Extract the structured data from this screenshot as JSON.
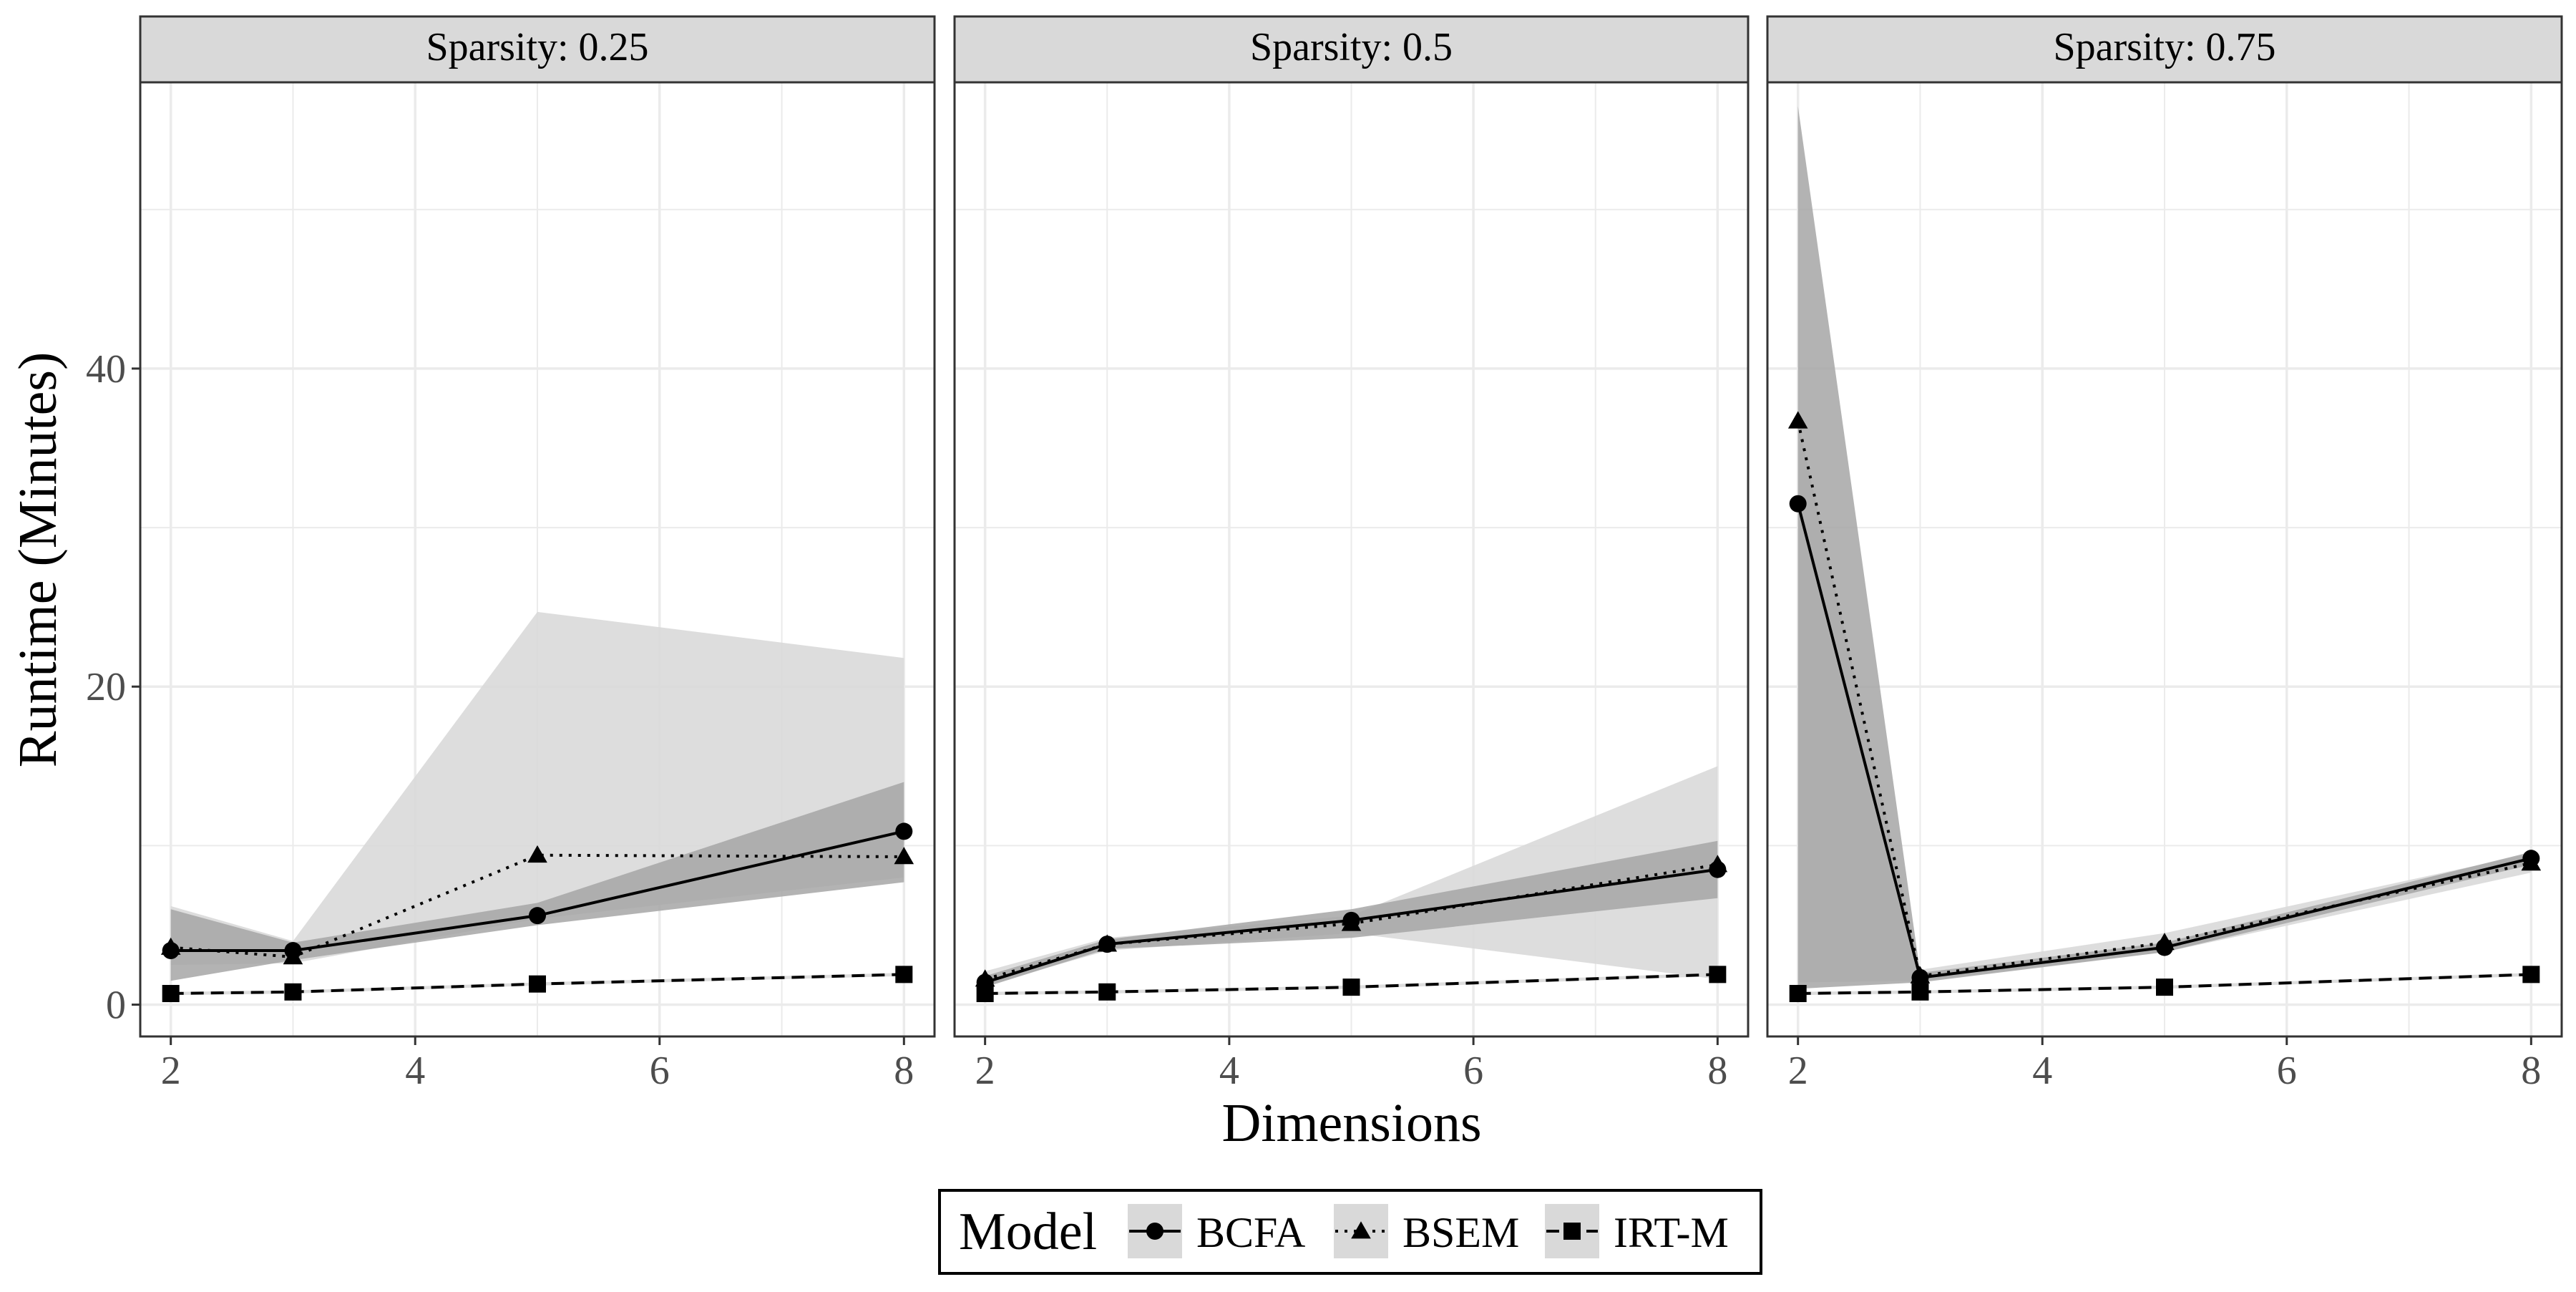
{
  "chart_data": {
    "type": "line",
    "ylabel": "Runtime (Minutes)",
    "xlabel": "Dimensions",
    "xlim": [
      1.75,
      8.25
    ],
    "ylim": [
      -2,
      58
    ],
    "x_ticks": [
      2,
      4,
      6,
      8
    ],
    "y_ticks": [
      0,
      20,
      40
    ],
    "grid": true,
    "legend": {
      "position": "bottom",
      "title": "Model",
      "entries": [
        {
          "name": "BCFA",
          "marker": "circle",
          "linestyle": "solid"
        },
        {
          "name": "BSEM",
          "marker": "triangle",
          "linestyle": "dotted"
        },
        {
          "name": "IRT-M",
          "marker": "square",
          "linestyle": "dashed"
        }
      ]
    },
    "colors": {
      "line": "#000000",
      "band_dark": "#a6a6a6",
      "band_light": "#d9d9d9",
      "strip": "#d9d9d9",
      "grid": "#ebebeb"
    },
    "panels": [
      {
        "strip": "Sparsity: 0.25",
        "x": [
          2,
          3,
          5,
          8
        ],
        "series": [
          {
            "name": "BCFA",
            "values": [
              3.4,
              3.4,
              5.6,
              10.9
            ],
            "band_lower": [
              1.5,
              2.8,
              5.0,
              7.7
            ],
            "band_upper": [
              6.0,
              3.9,
              6.4,
              14.0
            ],
            "band": "dark"
          },
          {
            "name": "BSEM",
            "values": [
              3.6,
              3.0,
              9.4,
              9.3
            ],
            "band_lower": [
              2.5,
              2.6,
              5.4,
              8.0
            ],
            "band_upper": [
              6.2,
              4.0,
              24.7,
              21.8
            ],
            "band": "light"
          },
          {
            "name": "IRT-M",
            "values": [
              0.7,
              0.8,
              1.3,
              1.9
            ],
            "band_lower": [
              0.6,
              0.7,
              1.2,
              1.8
            ],
            "band_upper": [
              0.8,
              0.9,
              1.4,
              2.0
            ],
            "band": "light"
          }
        ]
      },
      {
        "strip": "Sparsity: 0.5",
        "x": [
          2,
          3,
          5,
          8
        ],
        "series": [
          {
            "name": "BCFA",
            "values": [
              1.4,
              3.8,
              5.3,
              8.5
            ],
            "band_lower": [
              1.1,
              3.5,
              4.2,
              6.7
            ],
            "band_upper": [
              1.8,
              4.1,
              6.0,
              10.3
            ],
            "band": "dark"
          },
          {
            "name": "BSEM",
            "values": [
              1.6,
              3.8,
              5.1,
              8.8
            ],
            "band_lower": [
              1.2,
              3.4,
              4.5,
              1.6
            ],
            "band_upper": [
              2.1,
              4.2,
              5.6,
              15.0
            ],
            "band": "light"
          },
          {
            "name": "IRT-M",
            "values": [
              0.7,
              0.8,
              1.1,
              1.9
            ],
            "band_lower": [
              0.6,
              0.7,
              1.0,
              1.8
            ],
            "band_upper": [
              0.8,
              0.9,
              1.2,
              2.0
            ],
            "band": "light"
          }
        ]
      },
      {
        "strip": "Sparsity: 0.75",
        "x": [
          2,
          3,
          5,
          8
        ],
        "series": [
          {
            "name": "BCFA",
            "values": [
              31.5,
              1.7,
              3.6,
              9.2
            ],
            "band_lower": [
              1.0,
              1.4,
              3.3,
              8.8
            ],
            "band_upper": [
              56.5,
              2.0,
              3.9,
              9.6
            ],
            "band": "dark"
          },
          {
            "name": "BSEM",
            "values": [
              36.7,
              1.8,
              3.9,
              8.9
            ],
            "band_lower": [
              1.4,
              1.5,
              3.3,
              8.3
            ],
            "band_upper": [
              36.7,
              2.2,
              4.5,
              9.5
            ],
            "band": "light"
          },
          {
            "name": "IRT-M",
            "values": [
              0.7,
              0.8,
              1.1,
              1.9
            ],
            "band_lower": [
              0.6,
              0.7,
              1.0,
              1.8
            ],
            "band_upper": [
              0.8,
              0.9,
              1.2,
              2.0
            ],
            "band": "light"
          }
        ]
      }
    ]
  }
}
